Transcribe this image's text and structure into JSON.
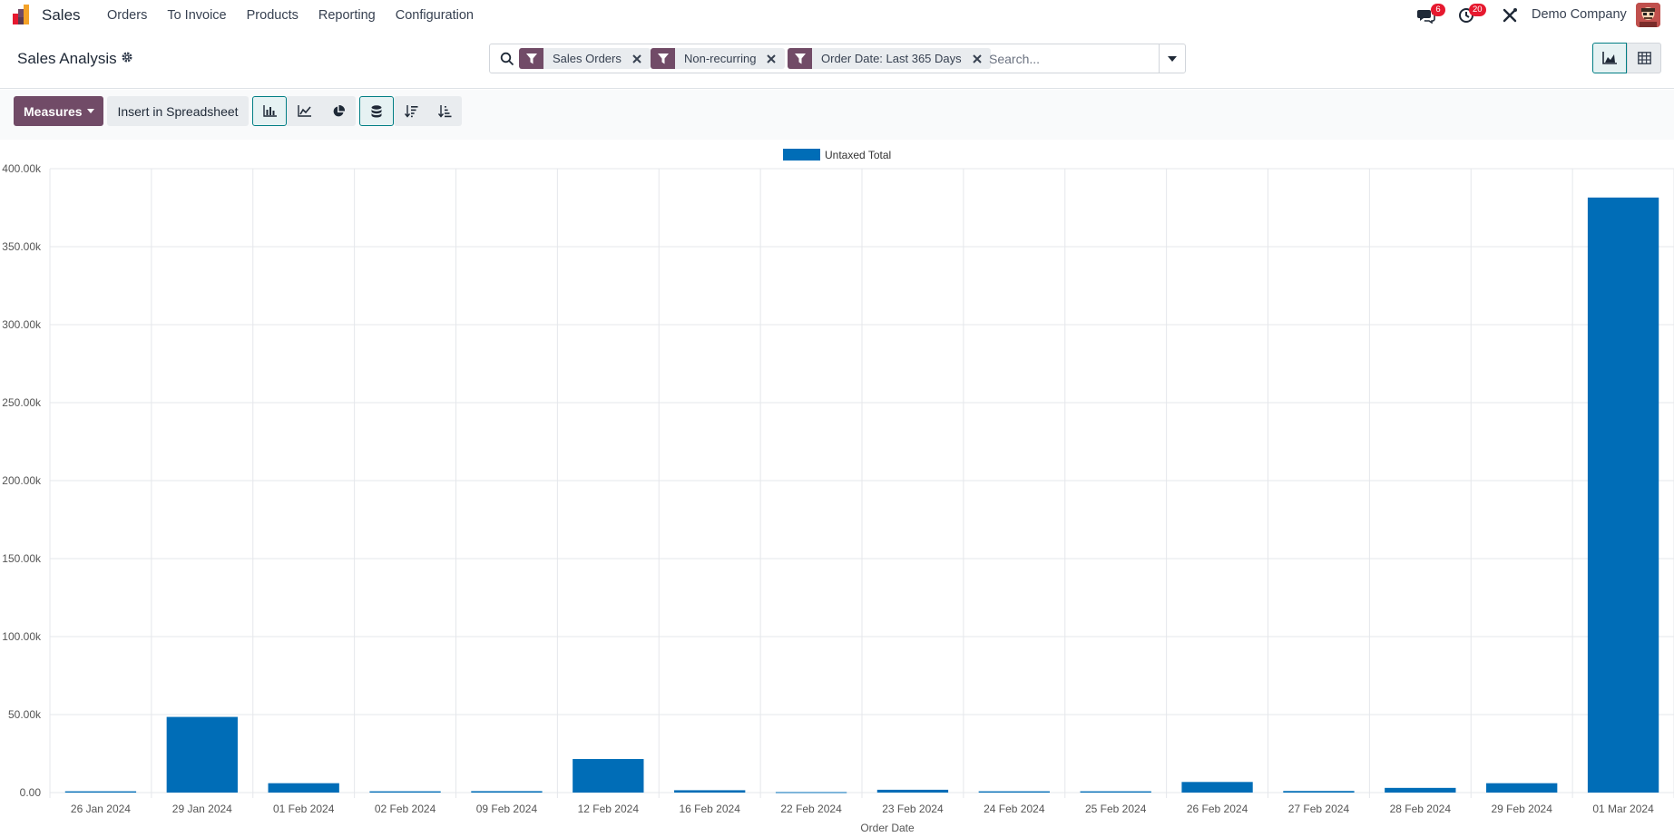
{
  "navbar": {
    "app_name": "Sales",
    "menu": [
      "Orders",
      "To Invoice",
      "Products",
      "Reporting",
      "Configuration"
    ],
    "messages_count": "6",
    "activities_count": "20",
    "company": "Demo Company"
  },
  "control_panel": {
    "title": "Sales Analysis",
    "facets": [
      "Sales Orders",
      "Non-recurring",
      "Order Date: Last 365 Days"
    ],
    "search_placeholder": "Search..."
  },
  "toolbar": {
    "measures_label": "Measures",
    "spreadsheet_label": "Insert in Spreadsheet"
  },
  "colors": {
    "brand": "#714b67",
    "accent": "#017e84",
    "bar": "#006db7",
    "badge": "#e6192f"
  },
  "chart_data": {
    "type": "bar",
    "categories": [
      "26 Jan 2024",
      "29 Jan 2024",
      "01 Feb 2024",
      "02 Feb 2024",
      "09 Feb 2024",
      "12 Feb 2024",
      "16 Feb 2024",
      "22 Feb 2024",
      "23 Feb 2024",
      "24 Feb 2024",
      "25 Feb 2024",
      "26 Feb 2024",
      "27 Feb 2024",
      "28 Feb 2024",
      "29 Feb 2024",
      "01 Mar 2024"
    ],
    "series": [
      {
        "name": "Untaxed Total",
        "values": [
          800,
          48500,
          6000,
          800,
          900,
          21500,
          1500,
          300,
          1800,
          800,
          800,
          6800,
          1000,
          3000,
          6000,
          381500
        ]
      }
    ],
    "xlabel": "Order Date",
    "ylabel": "",
    "ylim": [
      0,
      400000
    ],
    "yticks": [
      "0.00",
      "50.00k",
      "100.00k",
      "150.00k",
      "200.00k",
      "250.00k",
      "300.00k",
      "350.00k",
      "400.00k"
    ],
    "grid": true,
    "legend": "top-center"
  }
}
